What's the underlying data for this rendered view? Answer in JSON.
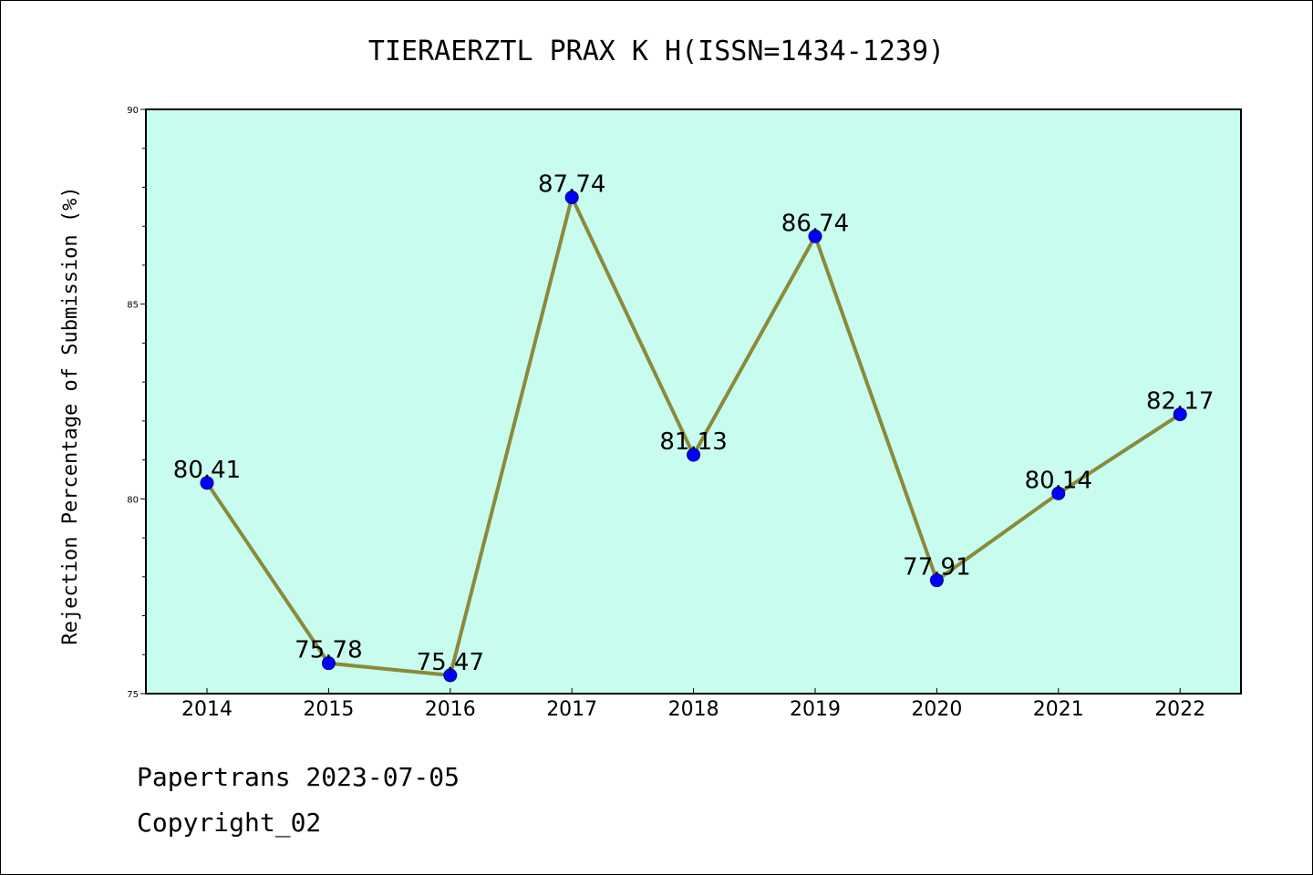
{
  "chart_data": {
    "type": "line",
    "title": "TIERAERZTL PRAX K H(ISSN=1434-1239)",
    "ylabel": "Rejection Percentage of Submission (%)",
    "xlabel": "",
    "x": [
      "2014",
      "2015",
      "2016",
      "2017",
      "2018",
      "2019",
      "2020",
      "2021",
      "2022"
    ],
    "values": [
      80.41,
      75.78,
      75.47,
      87.74,
      81.13,
      86.74,
      77.91,
      80.14,
      82.17
    ],
    "data_labels": [
      "80.41",
      "75.78",
      "75.47",
      "87.74",
      "81.13",
      "86.74",
      "77.91",
      "80.14",
      "82.17"
    ],
    "ylim": [
      75,
      90
    ],
    "yticks": [
      75,
      80,
      85,
      90
    ],
    "ytick_labels": [
      "75",
      "80",
      "85",
      "90"
    ],
    "grid": false,
    "colors": {
      "plot_background": "#c8fcee",
      "line": "#8b8a3a",
      "marker": "#0000ff"
    }
  },
  "footer": {
    "source": "Papertrans 2023-07-05",
    "copyright": "Copyright_02"
  }
}
